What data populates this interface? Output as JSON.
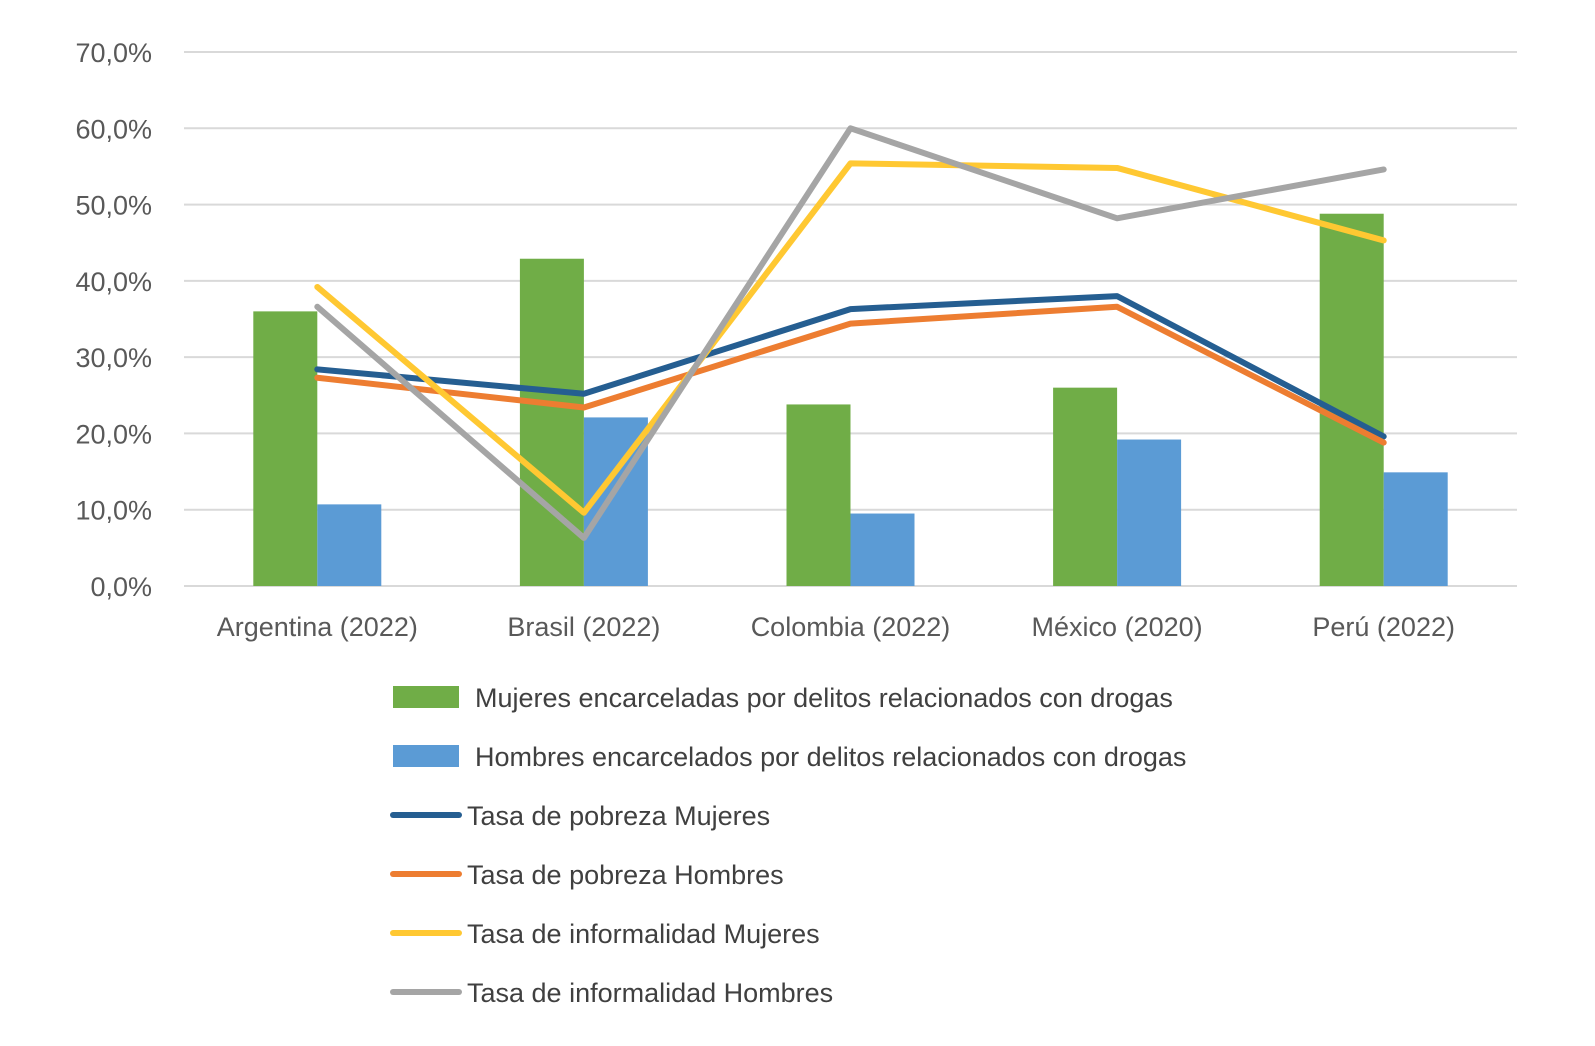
{
  "chart_data": {
    "type": "bar",
    "title": "",
    "xlabel": "",
    "ylabel": "",
    "ylim": [
      0,
      70
    ],
    "y_ticks": [
      "0,0%",
      "10,0%",
      "20,0%",
      "30,0%",
      "40,0%",
      "50,0%",
      "60,0%",
      "70,0%"
    ],
    "grid": true,
    "legend_position": "bottom",
    "categories": [
      "Argentina (2022)",
      "Brasil (2022)",
      "Colombia (2022)",
      "México (2020)",
      "Perú (2022)"
    ],
    "series": [
      {
        "name": "Mujeres encarceladas por delitos relacionados con drogas",
        "kind": "bar",
        "color": "#70AD47",
        "values": [
          36.0,
          42.9,
          23.8,
          26.0,
          48.8
        ]
      },
      {
        "name": "Hombres encarcelados por delitos relacionados con drogas",
        "kind": "bar",
        "color": "#5B9BD5",
        "values": [
          10.7,
          22.1,
          9.5,
          19.2,
          14.9
        ]
      },
      {
        "name": "Tasa de pobreza Mujeres",
        "kind": "line",
        "color": "#255E91",
        "values": [
          28.4,
          25.2,
          36.3,
          38.0,
          19.6
        ]
      },
      {
        "name": "Tasa de pobreza Hombres",
        "kind": "line",
        "color": "#ED7D31",
        "values": [
          27.3,
          23.4,
          34.4,
          36.6,
          18.8
        ]
      },
      {
        "name": "Tasa de informalidad Mujeres",
        "kind": "line",
        "color": "#FFC832",
        "values": [
          39.2,
          9.6,
          55.4,
          54.8,
          45.3
        ]
      },
      {
        "name": "Tasa de informalidad Hombres",
        "kind": "line",
        "color": "#A5A5A5",
        "values": [
          36.6,
          6.3,
          60.0,
          48.2,
          54.6
        ]
      }
    ]
  }
}
